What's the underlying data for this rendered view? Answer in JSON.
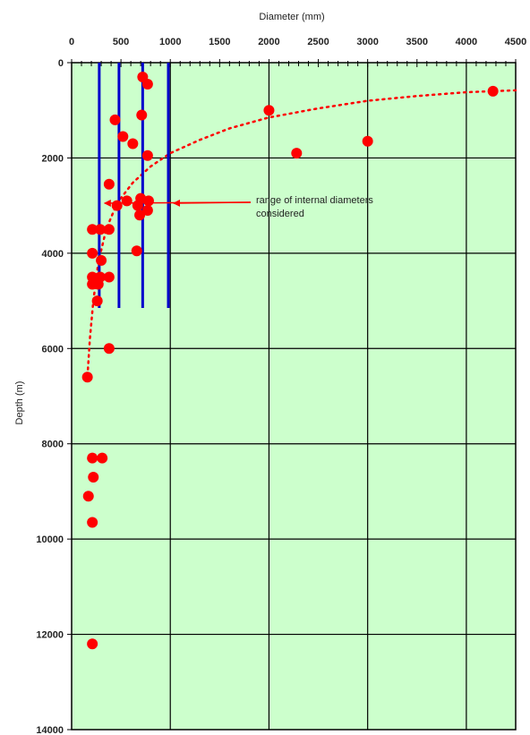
{
  "chart_data": {
    "type": "scatter",
    "xlabel": "Diameter (mm)",
    "ylabel": "Depth (m)",
    "xlim": [
      0,
      4500
    ],
    "ylim": [
      0,
      14000
    ],
    "y_inverted": true,
    "x_axis_position": "top",
    "background_color": "#ccffcc",
    "grid": true,
    "x_major_ticks": [
      0,
      500,
      1000,
      1500,
      2000,
      2500,
      3000,
      3500,
      4000,
      4500
    ],
    "x_tick_labels": [
      "0",
      "500",
      "1000",
      "1500",
      "2000",
      "2500",
      "3000",
      "3500",
      "4000",
      "4500"
    ],
    "x_grid_lines": [
      1000,
      2000,
      3000,
      4000
    ],
    "y_major_ticks": [
      0,
      2000,
      4000,
      6000,
      8000,
      10000,
      12000,
      14000
    ],
    "y_tick_labels": [
      "0",
      "2000",
      "4000",
      "6000",
      "8000",
      "10000",
      "12000",
      "14000"
    ],
    "series": [
      {
        "color": "#ff0000",
        "points": [
          {
            "x": 720,
            "y": 300
          },
          {
            "x": 770,
            "y": 450
          },
          {
            "x": 4270,
            "y": 600
          },
          {
            "x": 2000,
            "y": 1000
          },
          {
            "x": 710,
            "y": 1100
          },
          {
            "x": 440,
            "y": 1200
          },
          {
            "x": 520,
            "y": 1550
          },
          {
            "x": 620,
            "y": 1700
          },
          {
            "x": 3000,
            "y": 1650
          },
          {
            "x": 2280,
            "y": 1900
          },
          {
            "x": 770,
            "y": 1950
          },
          {
            "x": 380,
            "y": 2550
          },
          {
            "x": 560,
            "y": 2900
          },
          {
            "x": 700,
            "y": 2850
          },
          {
            "x": 780,
            "y": 2900
          },
          {
            "x": 460,
            "y": 3000
          },
          {
            "x": 670,
            "y": 3000
          },
          {
            "x": 770,
            "y": 3100
          },
          {
            "x": 690,
            "y": 3200
          },
          {
            "x": 210,
            "y": 3500
          },
          {
            "x": 290,
            "y": 3500
          },
          {
            "x": 380,
            "y": 3500
          },
          {
            "x": 660,
            "y": 3950
          },
          {
            "x": 210,
            "y": 4000
          },
          {
            "x": 300,
            "y": 4150
          },
          {
            "x": 210,
            "y": 4500
          },
          {
            "x": 290,
            "y": 4500
          },
          {
            "x": 380,
            "y": 4500
          },
          {
            "x": 210,
            "y": 4650
          },
          {
            "x": 270,
            "y": 4650
          },
          {
            "x": 260,
            "y": 5000
          },
          {
            "x": 380,
            "y": 6000
          },
          {
            "x": 160,
            "y": 6600
          },
          {
            "x": 210,
            "y": 8300
          },
          {
            "x": 310,
            "y": 8300
          },
          {
            "x": 220,
            "y": 8700
          },
          {
            "x": 170,
            "y": 9100
          },
          {
            "x": 210,
            "y": 9650
          },
          {
            "x": 210,
            "y": 12200
          }
        ]
      }
    ],
    "trend_curve": {
      "style": "dotted",
      "color": "#ff0000",
      "points": [
        {
          "x": 4500,
          "y": 580
        },
        {
          "x": 4000,
          "y": 620
        },
        {
          "x": 3500,
          "y": 700
        },
        {
          "x": 3000,
          "y": 800
        },
        {
          "x": 2500,
          "y": 960
        },
        {
          "x": 2000,
          "y": 1150
        },
        {
          "x": 1600,
          "y": 1380
        },
        {
          "x": 1300,
          "y": 1620
        },
        {
          "x": 1000,
          "y": 1900
        },
        {
          "x": 800,
          "y": 2180
        },
        {
          "x": 620,
          "y": 2520
        },
        {
          "x": 460,
          "y": 2950
        },
        {
          "x": 350,
          "y": 3500
        },
        {
          "x": 270,
          "y": 4200
        },
        {
          "x": 220,
          "y": 5000
        },
        {
          "x": 185,
          "y": 5800
        },
        {
          "x": 160,
          "y": 6600
        }
      ]
    },
    "vertical_lines": {
      "color": "#0000cc",
      "x_values": [
        280,
        480,
        720,
        980
      ],
      "y_range": [
        0,
        5150
      ]
    },
    "annotation": {
      "text_lines": [
        "range of internal diameters",
        "considered"
      ],
      "arrow_color": "#ff0000",
      "arrow_targets": [
        {
          "x": 280,
          "y": 2950
        },
        {
          "x": 980,
          "y": 2950
        }
      ]
    }
  }
}
